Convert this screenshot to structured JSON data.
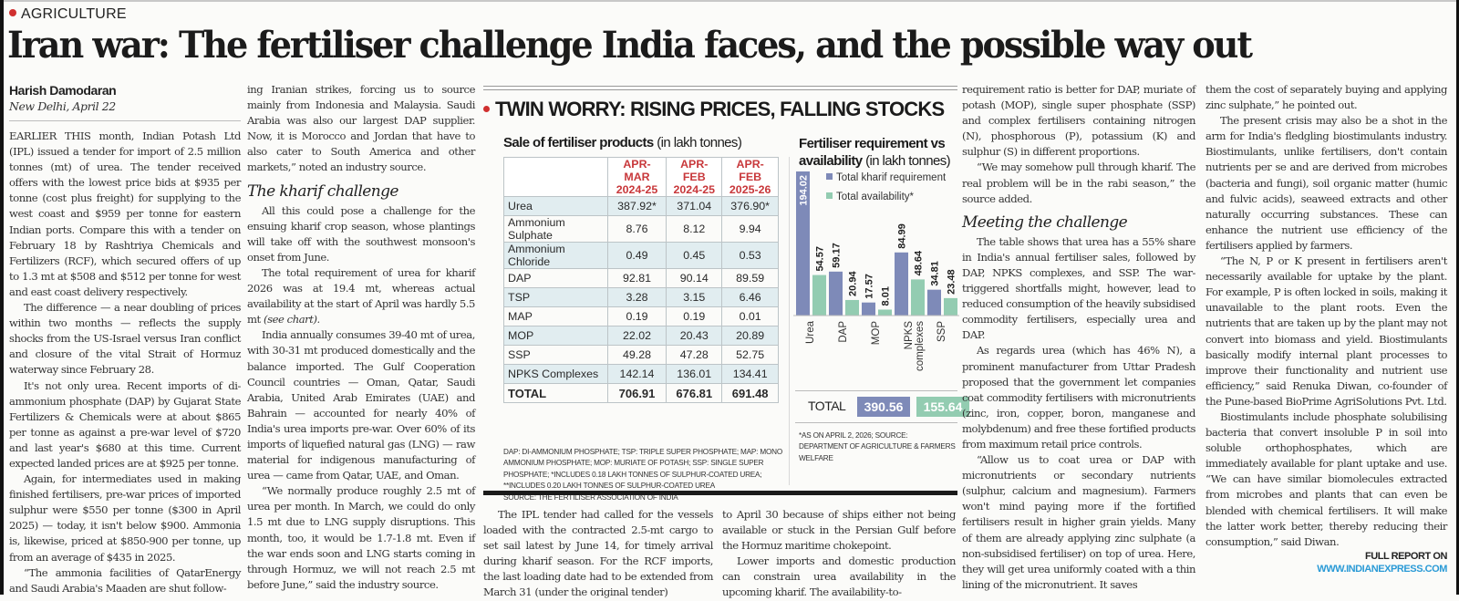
{
  "section": {
    "kicker": "AGRICULTURE"
  },
  "headline": "Iran war: The fertiliser challenge India faces, and the possible way out",
  "byline": {
    "author": "Harish Damodaran",
    "dateline": "New Delhi, April 22"
  },
  "columns": {
    "col1": [
      "EARLIER THIS month, Indian Potash Ltd (IPL) issued a tender for import of 2.5 million tonnes (mt) of urea. The tender received offers with the lowest price bids at $935 per tonne (cost plus freight) for supplying to the west coast and $959 per tonne for eastern Indian ports. Compare this with a tender on February 18 by Rashtriya Chemicals and Fertilizers (RCF), which secured offers of up to 1.3 mt at $508 and $512 per tonne for west and east coast delivery respectively.",
      "The difference — a near doubling of prices within two months — reflects the supply shocks from the US-Israel versus Iran conflict and closure of the vital Strait of Hormuz waterway since February 28.",
      "It's not only urea. Recent imports of di-ammonium phosphate (DAP) by Gujarat State Fertilizers & Chemicals were at about $865 per tonne as against a pre-war level of $720 and last year's $680 at this time. Current expected landed prices are at $925 per tonne.",
      "Again, for intermediates used in making finished fertilisers, pre-war prices of imported sulphur were $550 per tonne ($300 in April 2025) — today, it isn't below $900. Ammonia is, likewise, priced at $850-900 per tonne, up from an average of $435 in 2025.",
      "“The ammonia facilities of QatarEnergy and Saudi Arabia's Maaden are shut follow-"
    ],
    "col2_top": "ing Iranian strikes, forcing us to source mainly from Indonesia and Malaysia. Saudi Arabia was also our largest DAP supplier. Now, it is Morocco and Jordan that have to also cater to South America and other markets,” noted an industry source.",
    "col2_subhead": "The kharif challenge",
    "col2": [
      "All this could pose a challenge for the ensuing kharif crop season, whose plantings will take off with the southwest monsoon's onset from June.",
      "The total requirement of urea for kharif 2026 was at 19.4 mt, whereas actual availability at the start of April was hardly 5.5 mt",
      "India annually consumes 39-40 mt of urea, with 30-31 mt produced domestically and the balance imported. The Gulf Cooperation Council countries — Oman, Qatar, Saudi Arabia, United Arab Emirates (UAE) and Bahrain — accounted for nearly 40% of India's urea imports pre-war. Over 60% of its imports of liquefied natural gas (LNG) — raw material for indigenous manufacturing of urea — came from Qatar, UAE, and Oman.",
      "“We normally produce roughly 2.5 mt of urea per month. In March, we could do only 1.5 mt due to LNG supply disruptions. This month, too, it would be 1.7-1.8 mt. Even if the war ends soon and LNG starts coming in through Hormuz, we will not reach 2.5 mt before June,” said the industry source."
    ],
    "see_chart": "(see chart).",
    "col3_bottom": "The IPL tender had called for the vessels loaded with the contracted 2.5-mt cargo to set sail latest by June 14, for timely arrival during kharif season. For the RCF imports, the last loading date had to be extended from March 31 (under the original tender)",
    "col4_bottom": [
      "to April 30 because of ships either not being available or stuck in the Persian Gulf before the Hormuz maritime chokepoint.",
      "Lower imports and domestic production can constrain urea availability in the upcoming kharif. The availability-to-"
    ],
    "col5_top": [
      "requirement ratio is better for DAP, muriate of potash (MOP), single super phosphate (SSP) and complex fertilisers containing nitrogen (N), phosphorous (P), potassium (K) and sulphur (S) in different proportions.",
      "“We may somehow pull through kharif. The real problem will be in the rabi season,” the source added."
    ],
    "col5_subhead": "Meeting the challenge",
    "col5": [
      "The table shows that urea has a 55% share in India's annual fertiliser sales, followed by DAP, NPKS complexes, and SSP. The war-triggered shortfalls might, however, lead to reduced consumption of the heavily subsidised commodity fertilisers, especially urea and DAP.",
      "As regards urea (which has 46% N), a prominent manufacturer from Uttar Pradesh proposed that the government let companies coat commodity fertilisers with micronutrients (zinc, iron, copper, boron, manganese and molybdenum) and free these fortified products from maximum retail price controls.",
      "“Allow us to coat urea or DAP with micronutrients or secondary nutrients (sulphur, calcium and magnesium). Farmers won't mind paying more if the fortified fertilisers result in higher grain yields. Many of them are already applying zinc sulphate (a non-subsidised fertiliser) on top of urea. Here, they will get urea uniformly coated with a thin lining of the micronutrient. It saves"
    ],
    "col6": [
      "them the cost of separately buying and applying zinc sulphate,” he pointed out.",
      "The present crisis may also be a shot in the arm for India's fledgling biostimulants industry. Biostimulants, unlike fertilisers, don't contain nutrients per se and are derived from microbes (bacteria and fungi), soil organic matter (humic and fulvic acids), seaweed extracts and other naturally occurring substances. These can enhance the nutrient use efficiency of the fertilisers applied by farmers.",
      "“The N, P or K present in fertilisers aren't necessarily available for uptake by the plant. For example, P is often locked in soils, making it unavailable to the plant roots. Even the nutrients that are taken up by the plant may not convert into biomass and yield. Biostimulants basically modify internal plant processes to improve their functionality and nutrient use efficiency,” said Renuka Diwan, co-founder of the Pune-based BioPrime AgriSolutions Pvt. Ltd.",
      "Biostimulants include phosphate solubilising bacteria that convert insoluble P in soil into soluble orthophosphates, which are immediately available for plant uptake and use. “We can have similar biomolecules extracted from microbes and plants that can even be blended with chemical fertilisers. It will make the latter work better, thereby reducing their consumption,” said Diwan."
    ],
    "full_report": {
      "line1": "FULL REPORT ON",
      "line2": "WWW.INDIANEXPRESS.COM"
    }
  },
  "infographic": {
    "title": "TWIN WORRY: RISING PRICES, FALLING STOCKS",
    "table": {
      "title_bold": "Sale of fertiliser products",
      "title_unit": "(in lakh tonnes)",
      "headers": [
        {
          "line1": "APR-MAR",
          "line2": "2024-25"
        },
        {
          "line1": "APR-FEB",
          "line2": "2024-25"
        },
        {
          "line1": "APR-FEB",
          "line2": "2025-26"
        }
      ],
      "rows": [
        {
          "label": "Urea",
          "values": [
            "387.92*",
            "371.04",
            "376.90*"
          ]
        },
        {
          "label": "Ammonium Sulphate",
          "values": [
            "8.76",
            "8.12",
            "9.94"
          ]
        },
        {
          "label": "Ammonium Chloride",
          "values": [
            "0.49",
            "0.45",
            "0.53"
          ]
        },
        {
          "label": "DAP",
          "values": [
            "92.81",
            "90.14",
            "89.59"
          ]
        },
        {
          "label": "TSP",
          "values": [
            "3.28",
            "3.15",
            "6.46"
          ]
        },
        {
          "label": "MAP",
          "values": [
            "0.19",
            "0.19",
            "0.01"
          ]
        },
        {
          "label": "MOP",
          "values": [
            "22.02",
            "20.43",
            "20.89"
          ]
        },
        {
          "label": "SSP",
          "values": [
            "49.28",
            "47.28",
            "52.75"
          ]
        },
        {
          "label": "NPKS Complexes",
          "values": [
            "142.14",
            "136.01",
            "134.41"
          ]
        },
        {
          "label": "TOTAL",
          "values": [
            "706.91",
            "676.81",
            "691.48"
          ]
        }
      ],
      "notes": [
        "DAP: DI-AMMONIUM PHOSPHATE; TSP: TRIPLE SUPER PHOSPHATE; MAP: MONO AMMONIUM PHOSPHATE; MOP: MURIATE OF POTASH; SSP: SINGLE SUPER PHOSPHATE; *INCLUDES 0.18 LAKH TONNES OF SULPHUR-COATED UREA; **INCLUDES 0.20 LAKH TONNES OF SULPHUR-COATED UREA",
        "SOURCE: THE FERTILISER ASSOCIATION OF INDIA"
      ]
    },
    "chart": {
      "title_bold": "Fertiliser requirement vs availability",
      "title_unit": "(in lakh tonnes)",
      "total_label": "TOTAL",
      "total_requirement": "390.56",
      "total_availability": "155.64",
      "notes": "*AS ON APRIL 2, 2026; SOURCE: DEPARTMENT OF AGRICULTURE & FARMERS WELFARE"
    }
  },
  "colors": {
    "accent_red": "#d0302f",
    "requirement": "#7e8ab8",
    "availability": "#93ccb1",
    "table_shade": "#e1edf0",
    "link_blue": "#2a9ad6"
  },
  "chart_data": {
    "type": "bar",
    "title": "Fertiliser requirement vs availability (in lakh tonnes)",
    "categories": [
      "Urea",
      "DAP",
      "MOP",
      "NPKS complexes",
      "SSP"
    ],
    "series": [
      {
        "name": "Total kharif requirement",
        "values": [
          194.02,
          59.17,
          17.57,
          84.99,
          34.81
        ]
      },
      {
        "name": "Total availability*",
        "values": [
          54.57,
          20.94,
          8.01,
          48.64,
          23.48
        ]
      }
    ],
    "ylim": [
      0,
      194.02
    ],
    "legend": "top-right",
    "xlabel": "",
    "ylabel": "",
    "grid": false
  }
}
